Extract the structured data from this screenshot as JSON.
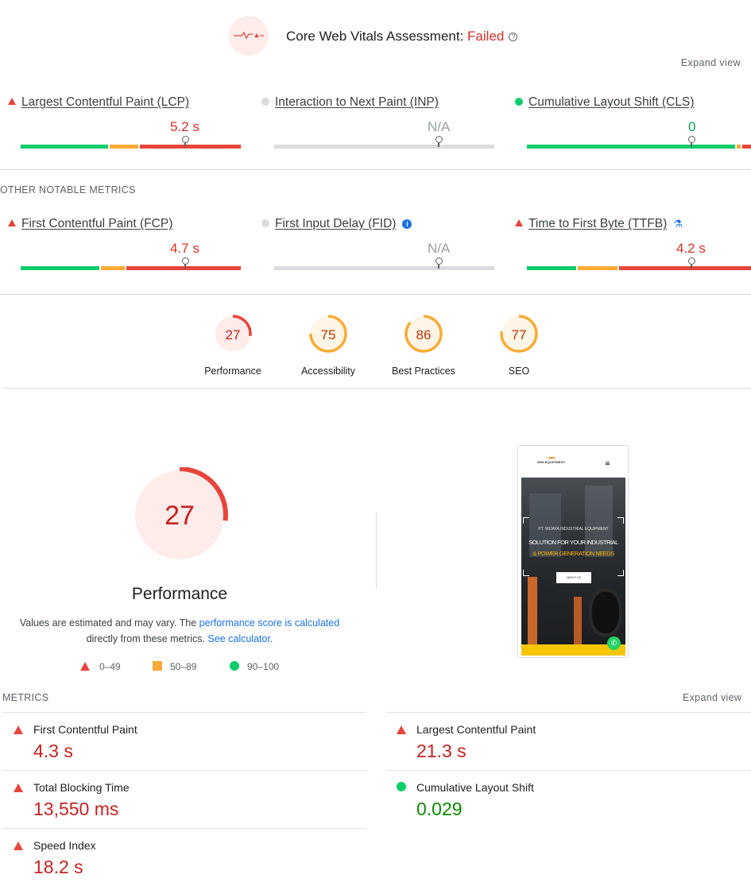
{
  "assessment": {
    "title": "Core Web Vitals Assessment:",
    "status": "Failed",
    "help_icon": "?",
    "expand_label": "Expand view"
  },
  "core_metrics": [
    {
      "name": "Largest Contentful Paint (LCP)",
      "value": "5.2 s",
      "status": "poor",
      "icon": "warning-triangle-icon"
    },
    {
      "name": "Interaction to Next Paint (INP)",
      "value": "N/A",
      "status": "none",
      "icon": "grey-dot-icon"
    },
    {
      "name": "Cumulative Layout Shift (CLS)",
      "value": "0",
      "status": "good",
      "icon": "green-dot-icon"
    }
  ],
  "other_metrics_label": "OTHER NOTABLE METRICS",
  "other_metrics": [
    {
      "name": "First Contentful Paint (FCP)",
      "value": "4.7 s",
      "status": "poor",
      "icon": "warning-triangle-icon"
    },
    {
      "name": "First Input Delay (FID)",
      "value": "N/A",
      "status": "none",
      "icon": "grey-dot-icon",
      "info_icon": "i"
    },
    {
      "name": "Time to First Byte (TTFB)",
      "value": "4.2 s",
      "status": "poor",
      "icon": "warning-triangle-icon",
      "flask_icon": "⚗"
    }
  ],
  "scores": [
    {
      "label": "Performance",
      "score": 27,
      "color": "#e8453c",
      "fill": "#fdecea",
      "text": "#c5221f"
    },
    {
      "label": "Accessibility",
      "score": 75,
      "color": "#fbab35",
      "fill": "#fff6e8",
      "text": "#c33300"
    },
    {
      "label": "Best Practices",
      "score": 86,
      "color": "#fbab35",
      "fill": "#fff6e8",
      "text": "#c33300"
    },
    {
      "label": "SEO",
      "score": 77,
      "color": "#fbab35",
      "fill": "#fff6e8",
      "text": "#c33300"
    }
  ],
  "performance": {
    "score": "27",
    "title": "Performance",
    "note_prefix": "Values are estimated and may vary. The",
    "note_link1": "performance score is calculated",
    "note_middle": "directly from these metrics.",
    "note_link2": "See calculator.",
    "legend": {
      "poor": "0–49",
      "average": "50–89",
      "good": "90–100"
    }
  },
  "phone_preview": {
    "logo": "WIN-EQUIPMENT",
    "hero_line1": "PT. WIJAYA INDUSTRIAL EQUIPMENT",
    "hero_line2": "SOLUTION FOR YOUR INDUSTRIAL",
    "hero_line3": "& POWER GENERATION NEEDS",
    "button": "ABOUT US"
  },
  "lab_metrics_label": "METRICS",
  "lab_expand_label": "Expand view",
  "lab_metrics": [
    {
      "name": "First Contentful Paint",
      "value": "4.3 s",
      "status": "poor"
    },
    {
      "name": "Largest Contentful Paint",
      "value": "21.3 s",
      "status": "poor"
    },
    {
      "name": "Total Blocking Time",
      "value": "13,550 ms",
      "status": "poor"
    },
    {
      "name": "Cumulative Layout Shift",
      "value": "0.029",
      "status": "good"
    },
    {
      "name": "Speed Index",
      "value": "18.2 s",
      "status": "poor"
    }
  ],
  "colors": {
    "poor": "#e8453c",
    "average": "#fbab35",
    "good": "#0cce6b",
    "poor_text": "#c5221f",
    "good_text": "#0b8a00"
  }
}
